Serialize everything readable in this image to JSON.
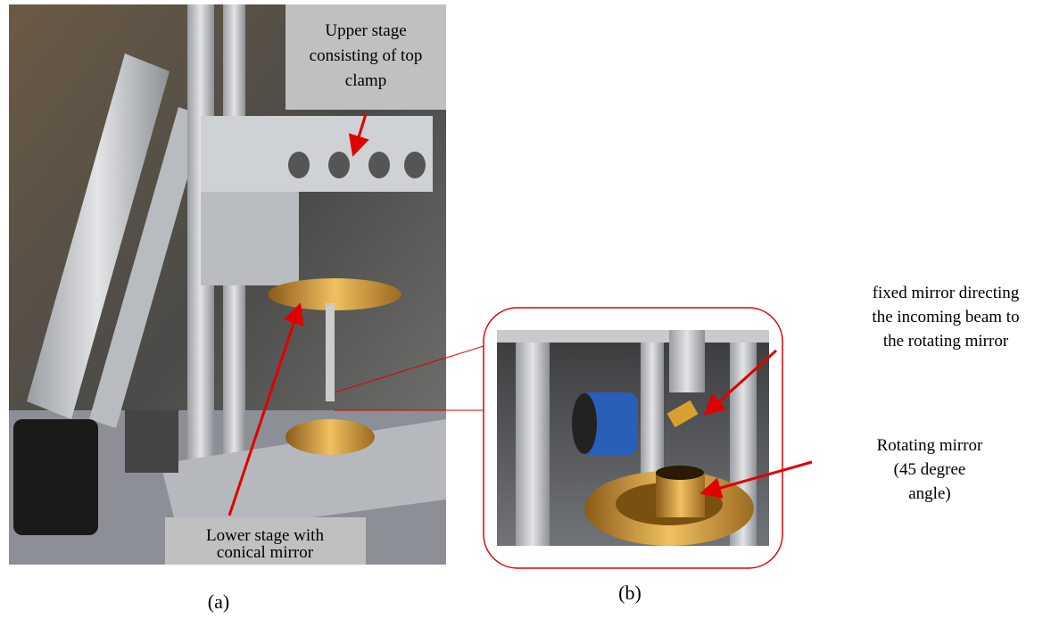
{
  "labels": {
    "upper_stage": {
      "lines": [
        "Upper stage",
        "consisting of top",
        "clamp"
      ]
    },
    "lower_stage": {
      "lines": [
        "Lower stage with",
        "conical mirror"
      ]
    },
    "fixed_mirror": {
      "lines": [
        "fixed mirror directing",
        "the incoming beam to",
        "the rotating mirror"
      ]
    },
    "rotating_mirror": {
      "lines": [
        "Rotating mirror",
        "(45 degree",
        "angle)"
      ]
    }
  },
  "captions": [
    "(a)",
    "(b)"
  ]
}
